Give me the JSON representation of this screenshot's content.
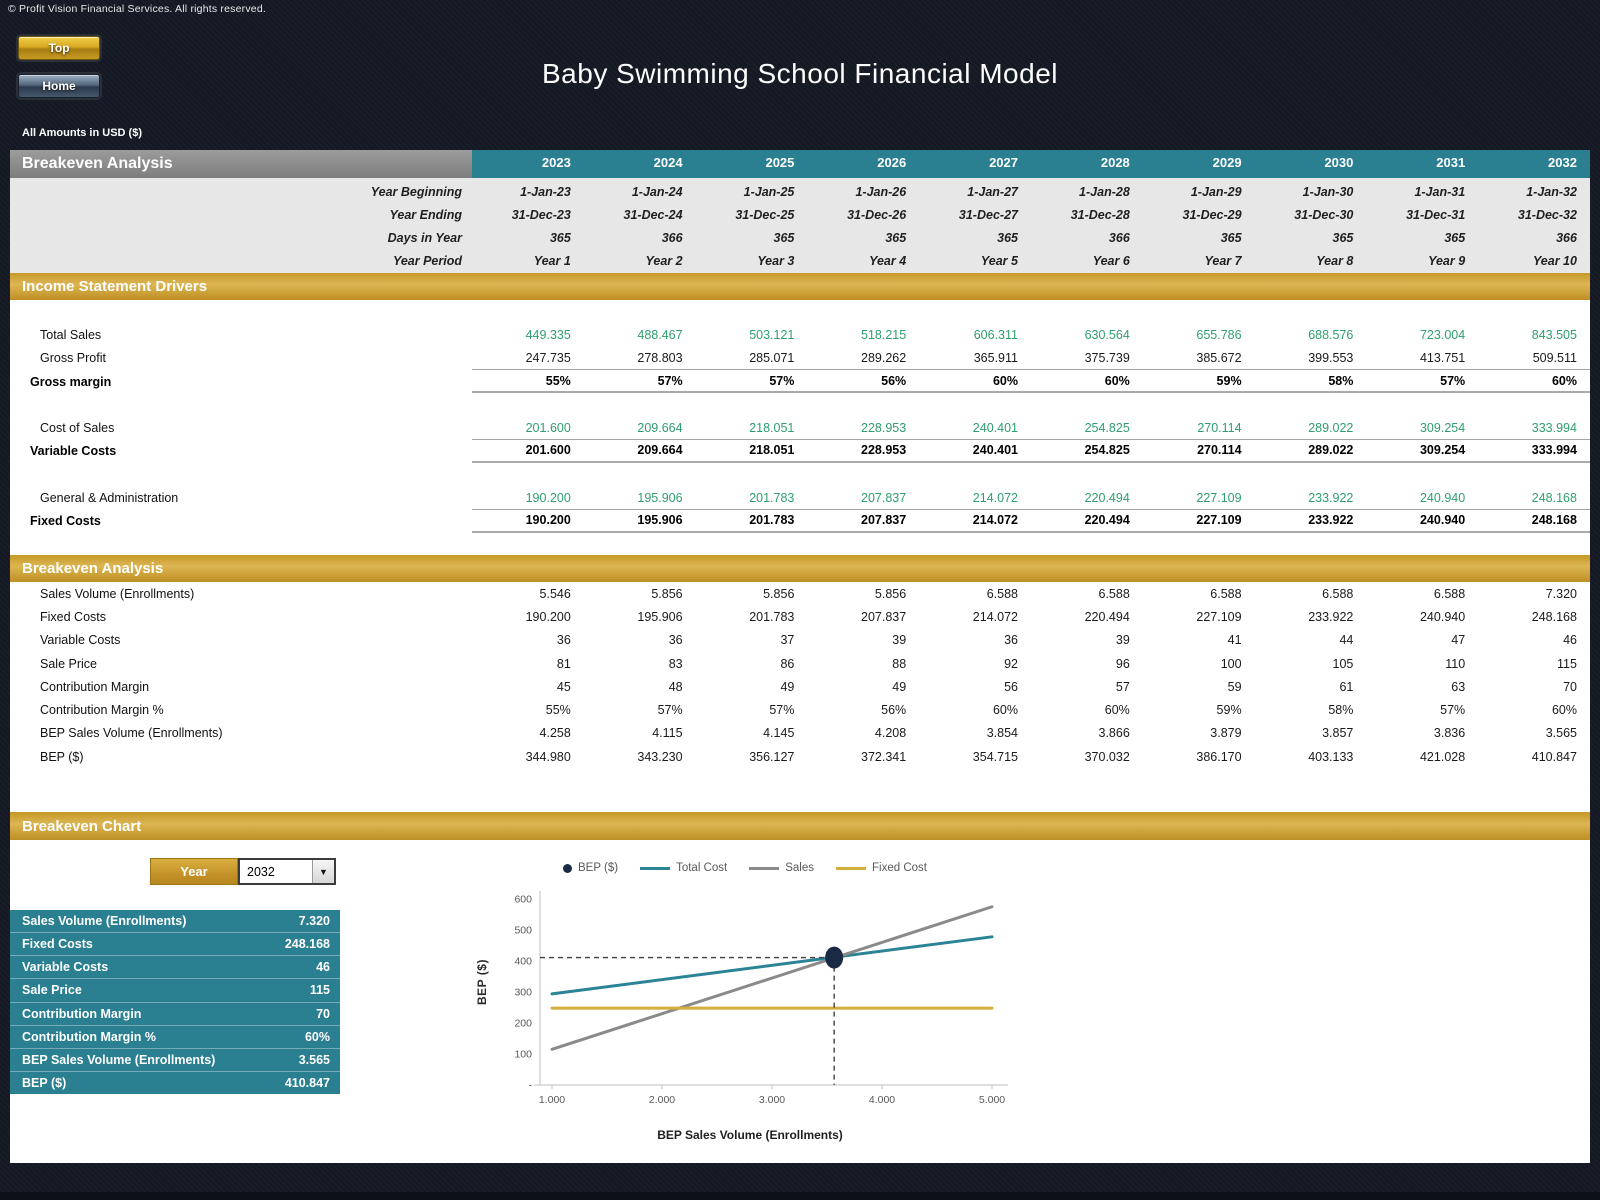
{
  "page": {
    "copyright": "© Profit Vision Financial Services. All rights reserved.",
    "title": "Baby Swimming School Financial Model",
    "amounts_note": "All Amounts in  USD ($)",
    "buttons": {
      "top": "Top",
      "home": "Home"
    }
  },
  "colors": {
    "teal": "#2a7f91",
    "gold": "#cda33a",
    "green_value": "#2f9e6e",
    "navy_bg": "#141923",
    "chart_total_cost": "#2a8495",
    "chart_sales": "#8a8a8a",
    "chart_fixed_cost": "#d3ae3b",
    "chart_bep_dot": "#1b2a44"
  },
  "table": {
    "header_label": "Breakeven Analysis",
    "years": [
      "2023",
      "2024",
      "2025",
      "2026",
      "2027",
      "2028",
      "2029",
      "2030",
      "2031",
      "2032"
    ],
    "meta_rows": [
      {
        "label": "Year Beginning",
        "values": [
          "1-Jan-23",
          "1-Jan-24",
          "1-Jan-25",
          "1-Jan-26",
          "1-Jan-27",
          "1-Jan-28",
          "1-Jan-29",
          "1-Jan-30",
          "1-Jan-31",
          "1-Jan-32"
        ]
      },
      {
        "label": "Year Ending",
        "values": [
          "31-Dec-23",
          "31-Dec-24",
          "31-Dec-25",
          "31-Dec-26",
          "31-Dec-27",
          "31-Dec-28",
          "31-Dec-29",
          "31-Dec-30",
          "31-Dec-31",
          "31-Dec-32"
        ]
      },
      {
        "label": "Days in Year",
        "values": [
          "365",
          "366",
          "365",
          "365",
          "365",
          "366",
          "365",
          "365",
          "365",
          "366"
        ]
      },
      {
        "label": "Year Period",
        "values": [
          "Year 1",
          "Year 2",
          "Year 3",
          "Year 4",
          "Year 5",
          "Year 6",
          "Year 7",
          "Year 8",
          "Year 9",
          "Year 10"
        ]
      }
    ],
    "sections": [
      {
        "title": "Income Statement Drivers",
        "rows": [
          {
            "style": "spacer"
          },
          {
            "label": "Total Sales",
            "style": "green",
            "underline": "none",
            "values": [
              "449.335",
              "488.467",
              "503.121",
              "518.215",
              "606.311",
              "630.564",
              "655.786",
              "688.576",
              "723.004",
              "843.505"
            ]
          },
          {
            "label": "Gross Profit",
            "style": "plain",
            "underline": "thin",
            "values": [
              "247.735",
              "278.803",
              "285.071",
              "289.262",
              "365.911",
              "375.739",
              "385.672",
              "399.553",
              "413.751",
              "509.511"
            ]
          },
          {
            "label": "Gross margin",
            "style": "bold",
            "underline": "thick",
            "values": [
              "55%",
              "57%",
              "57%",
              "56%",
              "60%",
              "60%",
              "59%",
              "58%",
              "57%",
              "60%"
            ]
          },
          {
            "style": "spacer"
          },
          {
            "label": "Cost of Sales",
            "style": "green",
            "underline": "thin",
            "values": [
              "201.600",
              "209.664",
              "218.051",
              "228.953",
              "240.401",
              "254.825",
              "270.114",
              "289.022",
              "309.254",
              "333.994"
            ]
          },
          {
            "label": "Variable Costs",
            "style": "bold",
            "underline": "thick",
            "values": [
              "201.600",
              "209.664",
              "218.051",
              "228.953",
              "240.401",
              "254.825",
              "270.114",
              "289.022",
              "309.254",
              "333.994"
            ]
          },
          {
            "style": "spacer"
          },
          {
            "label": "General & Administration",
            "style": "green",
            "underline": "thin",
            "values": [
              "190.200",
              "195.906",
              "201.783",
              "207.837",
              "214.072",
              "220.494",
              "227.109",
              "233.922",
              "240.940",
              "248.168"
            ]
          },
          {
            "label": "Fixed Costs",
            "style": "bold",
            "underline": "thick",
            "values": [
              "190.200",
              "195.906",
              "201.783",
              "207.837",
              "214.072",
              "220.494",
              "227.109",
              "233.922",
              "240.940",
              "248.168"
            ]
          }
        ]
      },
      {
        "title": "Breakeven Analysis",
        "rows": [
          {
            "label": "Sales Volume (Enrollments)",
            "style": "plain",
            "underline": "none",
            "values": [
              "5.546",
              "5.856",
              "5.856",
              "5.856",
              "6.588",
              "6.588",
              "6.588",
              "6.588",
              "6.588",
              "7.320"
            ]
          },
          {
            "label": "Fixed Costs",
            "style": "plain",
            "underline": "none",
            "values": [
              "190.200",
              "195.906",
              "201.783",
              "207.837",
              "214.072",
              "220.494",
              "227.109",
              "233.922",
              "240.940",
              "248.168"
            ]
          },
          {
            "label": "Variable Costs",
            "style": "plain",
            "underline": "none",
            "values": [
              "36",
              "36",
              "37",
              "39",
              "36",
              "39",
              "41",
              "44",
              "47",
              "46"
            ]
          },
          {
            "label": "Sale Price",
            "style": "plain",
            "underline": "none",
            "values": [
              "81",
              "83",
              "86",
              "88",
              "92",
              "96",
              "100",
              "105",
              "110",
              "115"
            ]
          },
          {
            "label": "Contribution Margin",
            "style": "plain",
            "underline": "none",
            "values": [
              "45",
              "48",
              "49",
              "49",
              "56",
              "57",
              "59",
              "61",
              "63",
              "70"
            ]
          },
          {
            "label": "Contribution Margin %",
            "style": "plain",
            "underline": "none",
            "values": [
              "55%",
              "57%",
              "57%",
              "56%",
              "60%",
              "60%",
              "59%",
              "58%",
              "57%",
              "60%"
            ]
          },
          {
            "label": "BEP Sales Volume (Enrollments)",
            "style": "plain",
            "underline": "none",
            "values": [
              "4.258",
              "4.115",
              "4.145",
              "4.208",
              "3.854",
              "3.866",
              "3.879",
              "3.857",
              "3.836",
              "3.565"
            ]
          },
          {
            "label": "BEP ($)",
            "style": "plain",
            "underline": "none",
            "values": [
              "344.980",
              "343.230",
              "356.127",
              "372.341",
              "354.715",
              "370.032",
              "386.170",
              "403.133",
              "421.028",
              "410.847"
            ]
          }
        ]
      }
    ]
  },
  "chart_section": {
    "title": "Breakeven Chart",
    "year_button_label": "Year",
    "year_selected": "2032",
    "stats": [
      {
        "label": "Sales Volume (Enrollments)",
        "value": "7.320"
      },
      {
        "label": "Fixed Costs",
        "value": "248.168"
      },
      {
        "label": "Variable Costs",
        "value": "46"
      },
      {
        "label": "Sale Price",
        "value": "115"
      },
      {
        "label": "Contribution Margin",
        "value": "70"
      },
      {
        "label": "Contribution Margin %",
        "value": "60%"
      },
      {
        "label": "BEP Sales Volume (Enrollments)",
        "value": "3.565"
      },
      {
        "label": "BEP ($)",
        "value": "410.847"
      }
    ]
  },
  "chart_data": {
    "type": "line",
    "xlabel": "BEP Sales Volume (Enrollments)",
    "ylabel": "BEP ($)",
    "xlim": [
      1000,
      5000
    ],
    "ylim": [
      0,
      600
    ],
    "xticks": {
      "labels": [
        "1.000",
        "2.000",
        "3.000",
        "4.000",
        "5.000"
      ],
      "values": [
        1000,
        2000,
        3000,
        4000,
        5000
      ]
    },
    "yticks": {
      "labels": [
        "-",
        "100",
        "200",
        "300",
        "400",
        "500",
        "600"
      ],
      "values": [
        0,
        100,
        200,
        300,
        400,
        500,
        600
      ]
    },
    "grid": false,
    "legend_position": "top",
    "legend": [
      {
        "label": "BEP ($)",
        "swatch": "dot",
        "color": "#1b2a44"
      },
      {
        "label": "Total Cost",
        "swatch": "line",
        "color": "#2a8495"
      },
      {
        "label": "Sales",
        "swatch": "line",
        "color": "#8a8a8a"
      },
      {
        "label": "Fixed Cost",
        "swatch": "line",
        "color": "#d3ae3b"
      }
    ],
    "series": [
      {
        "name": "Total Cost",
        "color": "#2a8495",
        "x": [
          1000,
          5000
        ],
        "y": [
          294,
          478
        ]
      },
      {
        "name": "Sales",
        "color": "#8a8a8a",
        "x": [
          1000,
          5000
        ],
        "y": [
          115,
          575
        ]
      },
      {
        "name": "Fixed Cost",
        "color": "#d3ae3b",
        "x": [
          1000,
          5000
        ],
        "y": [
          248,
          248
        ]
      }
    ],
    "bep_point": {
      "x": 3565,
      "y": 411,
      "color": "#1b2a44"
    }
  }
}
